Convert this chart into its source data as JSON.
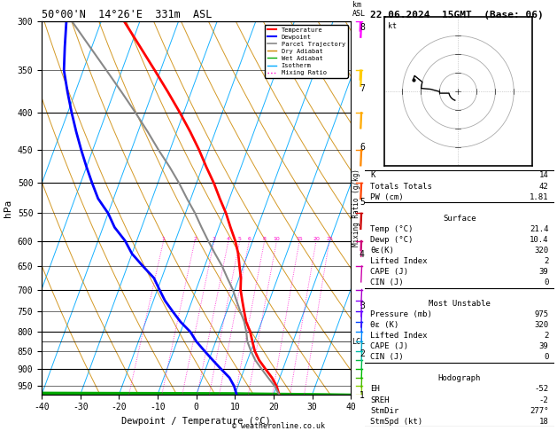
{
  "title_left": "50°00'N  14°26'E  331m  ASL",
  "title_right": "22.06.2024  15GMT  (Base: 06)",
  "xlabel": "Dewpoint / Temperature (°C)",
  "ylabel_left": "hPa",
  "pressure_levels": [
    300,
    350,
    400,
    450,
    500,
    550,
    600,
    650,
    700,
    750,
    800,
    850,
    900,
    950
  ],
  "temp_range": [
    -40,
    40
  ],
  "km_ticks": [
    1,
    2,
    3,
    4,
    5,
    6,
    7,
    8
  ],
  "km_pressures": [
    975,
    855,
    735,
    625,
    530,
    445,
    370,
    305
  ],
  "mixing_ratio_values": [
    1,
    2,
    3,
    4,
    5,
    6,
    8,
    10,
    15,
    20,
    25
  ],
  "lcl_pressure": 825,
  "pmin": 300,
  "pmax": 975,
  "skew": 30.0,
  "temp_profile_p": [
    975,
    950,
    925,
    900,
    875,
    850,
    825,
    800,
    775,
    750,
    725,
    700,
    675,
    650,
    625,
    600,
    575,
    550,
    525,
    500,
    475,
    450,
    425,
    400,
    375,
    350,
    325,
    300
  ],
  "temp_profile_t": [
    21.4,
    20.0,
    18.0,
    15.5,
    13.0,
    11.0,
    9.5,
    8.0,
    6.0,
    4.5,
    3.0,
    1.5,
    0.5,
    -1.0,
    -2.5,
    -4.5,
    -7.0,
    -9.5,
    -12.5,
    -15.5,
    -19.0,
    -22.5,
    -26.5,
    -31.0,
    -36.0,
    -41.5,
    -47.5,
    -54.0
  ],
  "dewp_profile_p": [
    975,
    950,
    925,
    900,
    875,
    850,
    825,
    800,
    775,
    750,
    725,
    700,
    675,
    650,
    625,
    600,
    575,
    550,
    525,
    500,
    475,
    450,
    425,
    400,
    375,
    350,
    325,
    300
  ],
  "dewp_profile_t": [
    10.4,
    9.0,
    7.0,
    4.0,
    1.0,
    -2.0,
    -5.0,
    -7.5,
    -11.0,
    -14.0,
    -17.0,
    -19.5,
    -22.0,
    -26.0,
    -30.0,
    -33.0,
    -37.0,
    -40.0,
    -44.0,
    -47.0,
    -50.0,
    -53.0,
    -56.0,
    -59.0,
    -62.0,
    -65.0,
    -67.0,
    -69.0
  ],
  "parcel_profile_p": [
    975,
    950,
    925,
    900,
    875,
    850,
    825,
    800,
    775,
    750,
    725,
    700,
    675,
    650,
    625,
    600,
    575,
    550,
    525,
    500,
    475,
    450,
    425,
    400,
    375,
    350,
    325,
    300
  ],
  "parcel_profile_t": [
    21.4,
    19.5,
    17.0,
    14.5,
    12.0,
    10.0,
    8.2,
    7.0,
    5.5,
    3.5,
    1.5,
    -0.5,
    -3.0,
    -5.5,
    -8.5,
    -11.5,
    -14.5,
    -17.5,
    -21.0,
    -24.5,
    -28.5,
    -33.0,
    -37.5,
    -42.5,
    -48.0,
    -54.0,
    -60.5,
    -67.5
  ],
  "wind_p": [
    975,
    950,
    925,
    900,
    875,
    850,
    825,
    800,
    775,
    750,
    725,
    700,
    650,
    600,
    550,
    500,
    450,
    400,
    350,
    300
  ],
  "wind_spd": [
    5,
    5,
    5,
    5,
    5,
    5,
    5,
    5,
    5,
    10,
    10,
    10,
    10,
    15,
    20,
    20,
    20,
    20,
    25,
    25
  ],
  "wind_dir": [
    200,
    200,
    210,
    220,
    230,
    240,
    250,
    255,
    260,
    265,
    270,
    270,
    270,
    275,
    275,
    280,
    285,
    285,
    290,
    285
  ],
  "wind_colors_by_p": {
    "975": "#cccc00",
    "950": "#88cc00",
    "925": "#44bb00",
    "900": "#00bb00",
    "875": "#00bb44",
    "850": "#00bbaa",
    "825": "#00aacc",
    "800": "#0088ff",
    "775": "#0044ff",
    "750": "#4400ff",
    "725": "#8800ff",
    "700": "#aa00cc",
    "650": "#cc00aa",
    "600": "#cc0077",
    "550": "#cc0000",
    "500": "#ff4400",
    "450": "#ff8800",
    "400": "#ffaa00",
    "350": "#ffcc00",
    "300": "#ff00ff"
  },
  "colors": {
    "temperature": "#ff0000",
    "dewpoint": "#0000ff",
    "parcel": "#888888",
    "dry_adiabat": "#cc8800",
    "wet_adiabat": "#00aa00",
    "isotherm": "#00aaff",
    "mixing_ratio": "#ff00cc",
    "background": "#ffffff",
    "grid_line": "#000000"
  }
}
